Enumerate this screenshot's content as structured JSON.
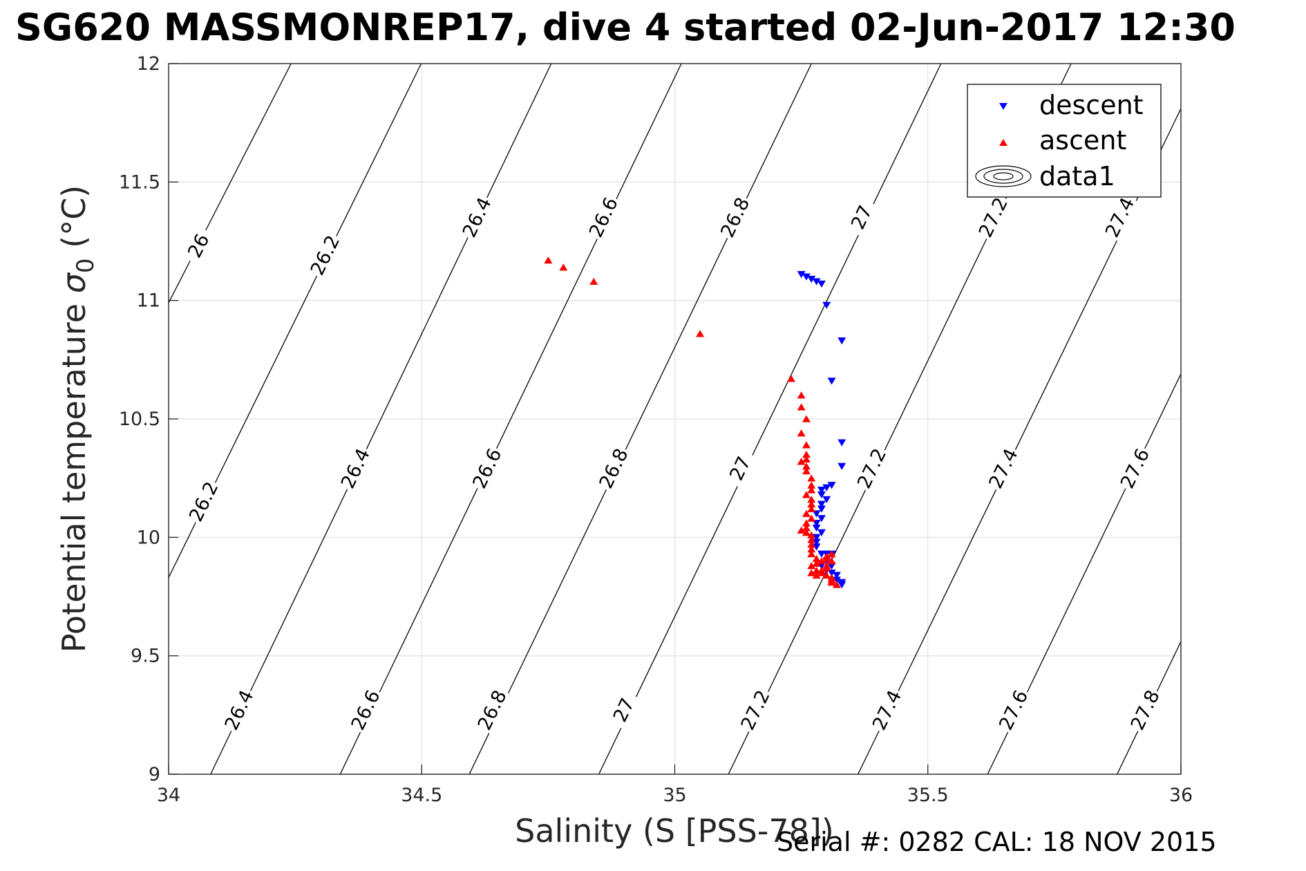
{
  "figure": {
    "title": "SG620 MASSMONREP17, dive 4 started 02-Jun-2017 12:30",
    "serial_text": "Serial #: 0282  CAL: 18 NOV 2015"
  },
  "colors": {
    "descent": "#0000ff",
    "ascent": "#ff0000",
    "contour": "#000000",
    "grid": "#e3e3e3",
    "axis": "#262626"
  },
  "chart_data": {
    "type": "scatter",
    "title": "SG620 MASSMONREP17, dive 4 started 02-Jun-2017 12:30",
    "xlabel": "Salinity (S [PSS-78])",
    "ylabel_main": "Potential temperature ",
    "ylabel_sigma": "σ",
    "ylabel_sub": "0",
    "ylabel_unit": " (°C)",
    "xlim": [
      34,
      36
    ],
    "ylim": [
      9,
      12
    ],
    "xticks": [
      "34",
      "34.5",
      "35",
      "35.5",
      "36"
    ],
    "yticks": [
      "9",
      "9.5",
      "10",
      "10.5",
      "11",
      "11.5",
      "12"
    ],
    "grid": true,
    "legend_position": "top-right",
    "legend": [
      "descent",
      "ascent",
      "data1"
    ],
    "series": [
      {
        "name": "descent",
        "marker": "triangle-down",
        "points": [
          [
            35.25,
            11.11
          ],
          [
            35.26,
            11.1
          ],
          [
            35.27,
            11.09
          ],
          [
            35.28,
            11.08
          ],
          [
            35.29,
            11.07
          ],
          [
            35.3,
            10.98
          ],
          [
            35.33,
            10.83
          ],
          [
            35.31,
            10.66
          ],
          [
            35.33,
            10.4
          ],
          [
            35.33,
            10.3
          ],
          [
            35.31,
            10.22
          ],
          [
            35.3,
            10.21
          ],
          [
            35.29,
            10.2
          ],
          [
            35.29,
            10.18
          ],
          [
            35.3,
            10.16
          ],
          [
            35.29,
            10.14
          ],
          [
            35.29,
            10.12
          ],
          [
            35.28,
            10.1
          ],
          [
            35.29,
            10.08
          ],
          [
            35.28,
            10.06
          ],
          [
            35.28,
            10.04
          ],
          [
            35.29,
            10.02
          ],
          [
            35.28,
            10.0
          ],
          [
            35.28,
            9.98
          ],
          [
            35.28,
            9.96
          ],
          [
            35.29,
            9.93
          ],
          [
            35.3,
            9.93
          ],
          [
            35.31,
            9.93
          ],
          [
            35.3,
            9.9
          ],
          [
            35.31,
            9.88
          ],
          [
            35.29,
            9.88
          ],
          [
            35.3,
            9.86
          ],
          [
            35.31,
            9.85
          ],
          [
            35.32,
            9.84
          ],
          [
            35.32,
            9.82
          ],
          [
            35.33,
            9.81
          ],
          [
            35.33,
            9.8
          ]
        ]
      },
      {
        "name": "ascent",
        "marker": "triangle-up",
        "points": [
          [
            34.75,
            11.17
          ],
          [
            34.78,
            11.14
          ],
          [
            34.84,
            11.08
          ],
          [
            35.05,
            10.86
          ],
          [
            35.23,
            10.67
          ],
          [
            35.25,
            10.6
          ],
          [
            35.25,
            10.55
          ],
          [
            35.26,
            10.5
          ],
          [
            35.25,
            10.44
          ],
          [
            35.26,
            10.39
          ],
          [
            35.26,
            10.35
          ],
          [
            35.26,
            10.33
          ],
          [
            35.25,
            10.32
          ],
          [
            35.26,
            10.3
          ],
          [
            35.26,
            10.28
          ],
          [
            35.27,
            10.25
          ],
          [
            35.27,
            10.22
          ],
          [
            35.27,
            10.2
          ],
          [
            35.26,
            10.18
          ],
          [
            35.27,
            10.16
          ],
          [
            35.27,
            10.14
          ],
          [
            35.27,
            10.12
          ],
          [
            35.26,
            10.1
          ],
          [
            35.27,
            10.08
          ],
          [
            35.26,
            10.06
          ],
          [
            35.26,
            10.04
          ],
          [
            35.25,
            10.03
          ],
          [
            35.26,
            10.02
          ],
          [
            35.27,
            10.01
          ],
          [
            35.27,
            9.99
          ],
          [
            35.27,
            9.97
          ],
          [
            35.27,
            9.95
          ],
          [
            35.27,
            9.93
          ],
          [
            35.28,
            9.91
          ],
          [
            35.28,
            9.89
          ],
          [
            35.27,
            9.88
          ],
          [
            35.28,
            9.86
          ],
          [
            35.27,
            9.85
          ],
          [
            35.28,
            9.84
          ],
          [
            35.29,
            9.86
          ],
          [
            35.3,
            9.87
          ],
          [
            35.29,
            9.85
          ],
          [
            35.3,
            9.84
          ],
          [
            35.31,
            9.83
          ],
          [
            35.31,
            9.82
          ],
          [
            35.31,
            9.81
          ],
          [
            35.32,
            9.8
          ],
          [
            35.3,
            9.91
          ],
          [
            35.3,
            9.92
          ],
          [
            35.31,
            9.93
          ],
          [
            35.31,
            9.9
          ],
          [
            35.29,
            9.9
          ],
          [
            35.3,
            9.88
          ]
        ]
      }
    ],
    "contours": {
      "name": "data1",
      "levels": [
        {
          "label": "26",
          "points": [
            [
              34.0,
              10.99
            ],
            [
              34.242,
              12.0
            ]
          ],
          "label_at": [
            [
              34.06,
              11.23
            ]
          ]
        },
        {
          "label": "26.2",
          "points": [
            [
              34.0,
              9.83
            ],
            [
              34.499,
              12.0
            ]
          ],
          "label_at": [
            [
              34.07,
              10.15
            ],
            [
              34.31,
              11.19
            ]
          ]
        },
        {
          "label": "26.4",
          "points": [
            [
              34.083,
              9.0
            ],
            [
              34.756,
              12.0
            ]
          ],
          "label_at": [
            [
              34.14,
              9.27
            ],
            [
              34.37,
              10.29
            ],
            [
              34.61,
              11.35
            ]
          ]
        },
        {
          "label": "26.6",
          "points": [
            [
              34.339,
              9.0
            ],
            [
              35.013,
              12.0
            ]
          ],
          "label_at": [
            [
              34.39,
              9.27
            ],
            [
              34.63,
              10.29
            ],
            [
              34.86,
              11.35
            ]
          ]
        },
        {
          "label": "26.8",
          "points": [
            [
              34.594,
              9.0
            ],
            [
              35.27,
              12.0
            ]
          ],
          "label_at": [
            [
              34.64,
              9.27
            ],
            [
              34.88,
              10.29
            ],
            [
              35.12,
              11.35
            ]
          ]
        },
        {
          "label": "27",
          "points": [
            [
              34.85,
              9.0
            ],
            [
              35.526,
              12.0
            ]
          ],
          "label_at": [
            [
              34.9,
              9.27
            ],
            [
              35.13,
              10.29
            ],
            [
              35.37,
              11.35
            ]
          ]
        },
        {
          "label": "27.2",
          "points": [
            [
              35.106,
              9.0
            ],
            [
              35.783,
              12.0
            ]
          ],
          "label_at": [
            [
              35.16,
              9.27
            ],
            [
              35.39,
              10.29
            ],
            [
              35.63,
              11.35
            ]
          ]
        },
        {
          "label": "27.4",
          "points": [
            [
              35.362,
              9.0
            ],
            [
              36.0,
              11.81
            ]
          ],
          "label_at": [
            [
              35.42,
              9.27
            ],
            [
              35.65,
              10.29
            ],
            [
              35.88,
              11.35
            ]
          ]
        },
        {
          "label": "27.6",
          "points": [
            [
              35.618,
              9.0
            ],
            [
              36.0,
              10.69
            ]
          ],
          "label_at": [
            [
              35.67,
              9.27
            ],
            [
              35.91,
              10.29
            ]
          ]
        },
        {
          "label": "27.8",
          "points": [
            [
              35.874,
              9.0
            ],
            [
              36.0,
              9.56
            ]
          ],
          "label_at": [
            [
              35.93,
              9.27
            ]
          ]
        }
      ]
    }
  }
}
